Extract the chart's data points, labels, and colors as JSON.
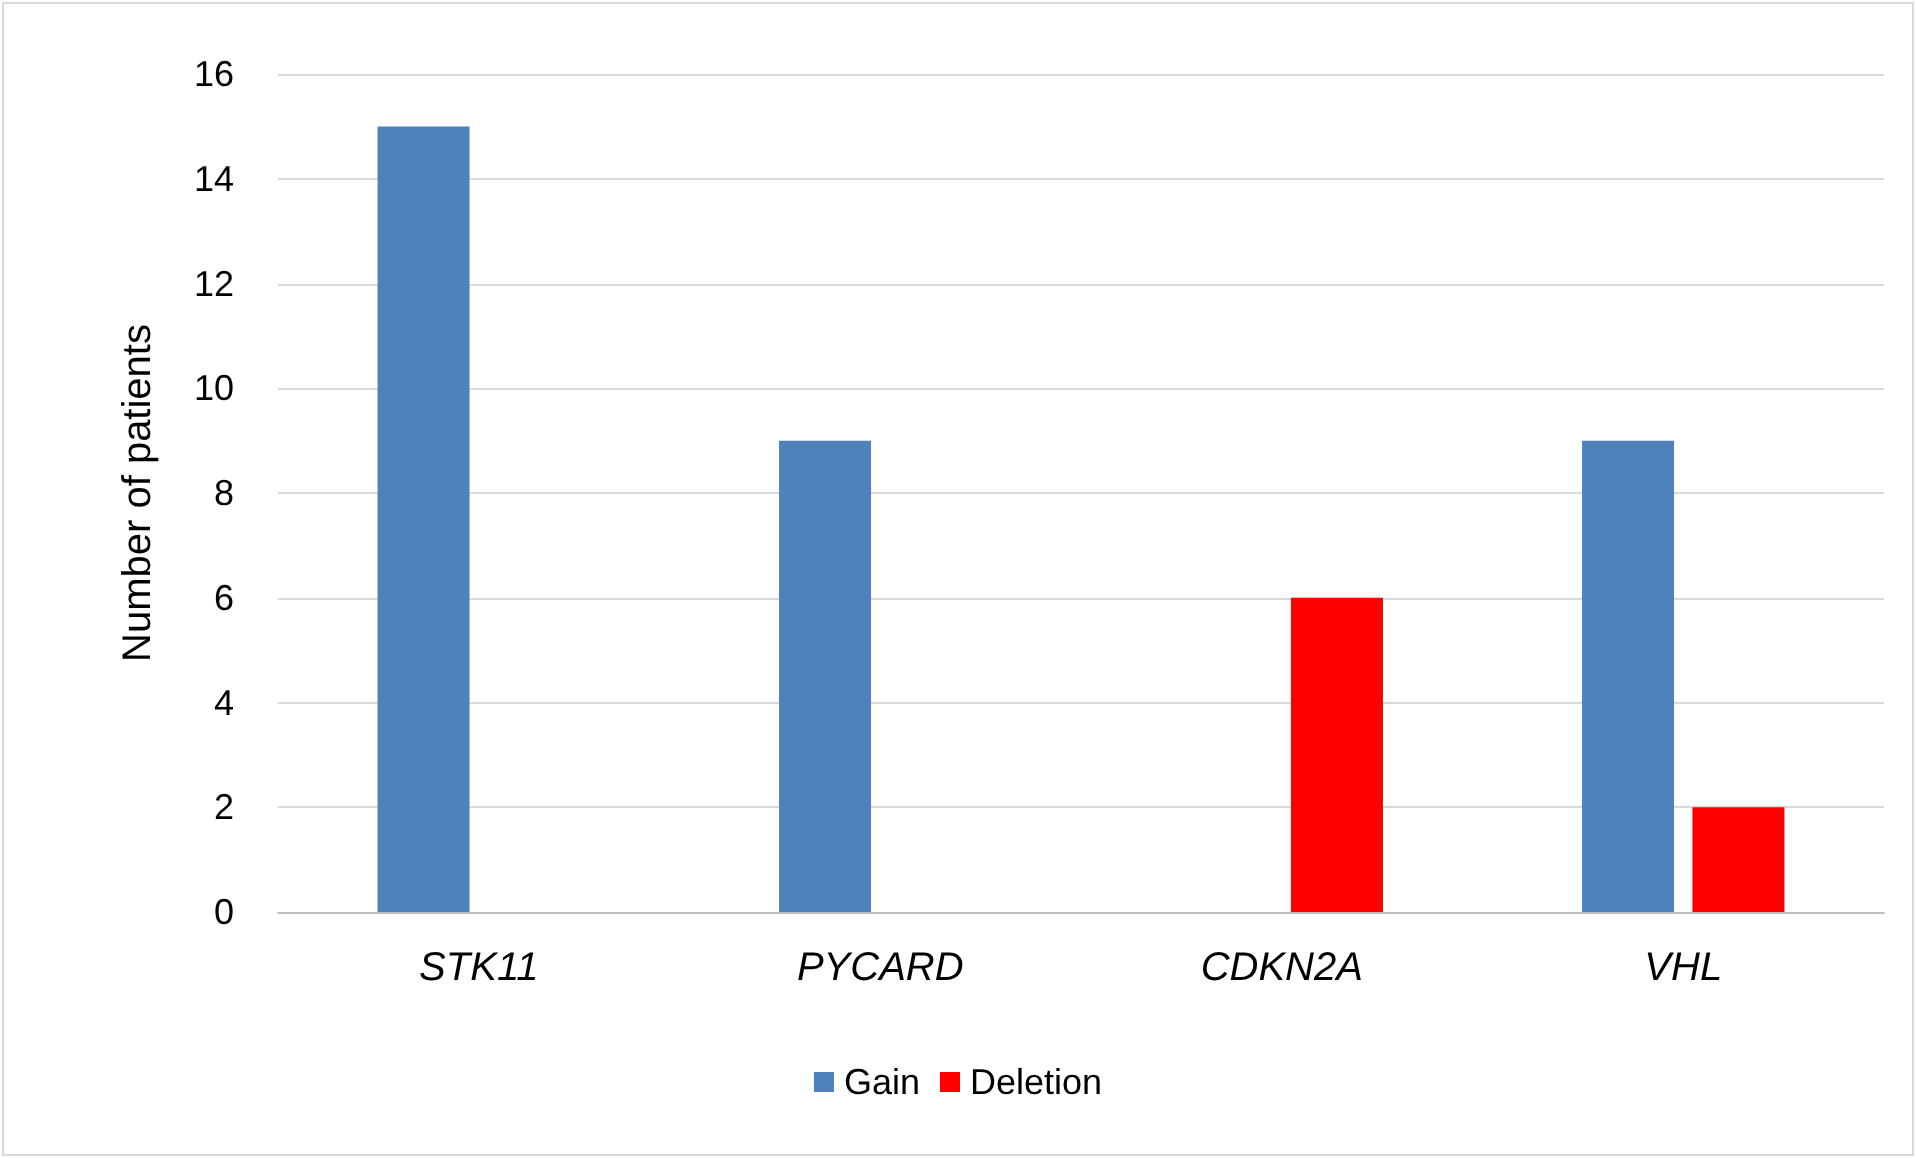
{
  "chart_data": {
    "type": "bar",
    "ylabel": "Number of patients",
    "categories": [
      "STK11",
      "PYCARD",
      "CDKN2A",
      "VHL"
    ],
    "series": [
      {
        "name": "Gain",
        "color": "#4f81bd",
        "values": [
          15,
          9,
          0,
          9
        ]
      },
      {
        "name": "Deletion",
        "color": "#ff0000",
        "values": [
          0,
          0,
          6,
          2
        ]
      }
    ],
    "ylim": [
      0,
      16
    ],
    "yticks": [
      0,
      2,
      4,
      6,
      8,
      10,
      12,
      14,
      16
    ],
    "grid": "y",
    "legend": "bottom"
  }
}
